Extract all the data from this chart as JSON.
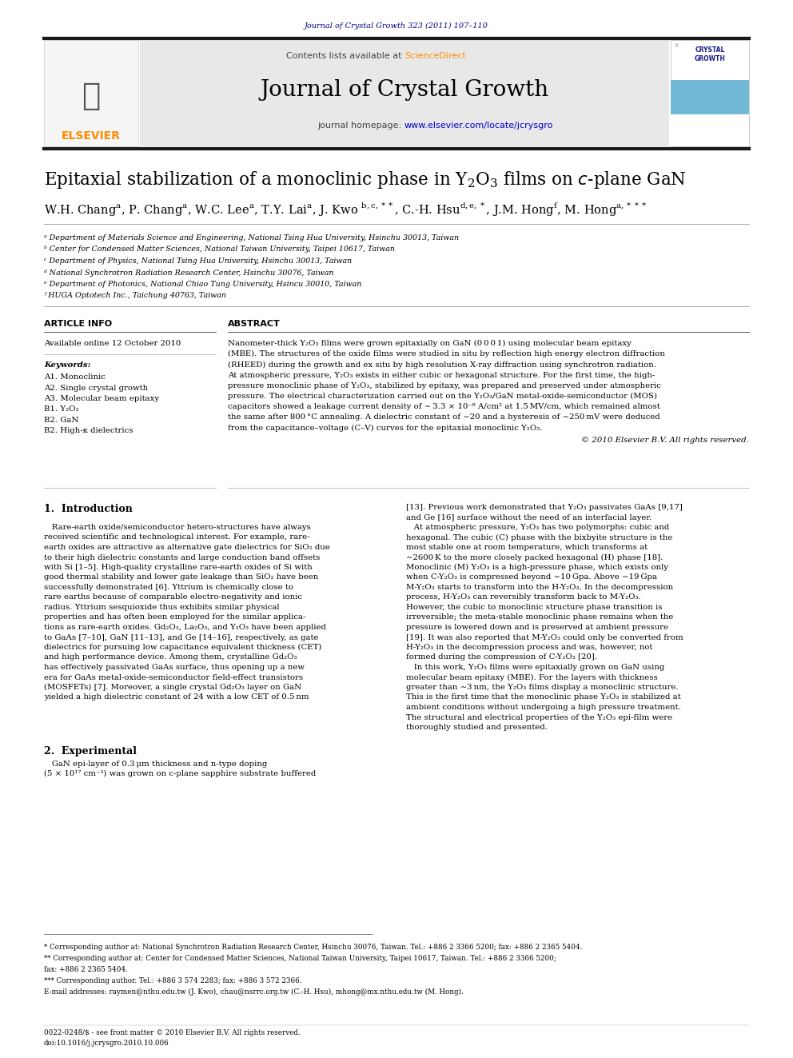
{
  "page_width": 9.92,
  "page_height": 13.23,
  "bg_color": "#ffffff",
  "journal_ref": "Journal of Crystal Growth 323 (2011) 107–110",
  "journal_ref_color": "#00008B",
  "header_bg": "#e8e8e8",
  "sciencedirect_color": "#FF8C00",
  "journal_title": "Journal of Crystal Growth",
  "journal_url_color": "#0000CD",
  "article_title_part1": "Epitaxial stabilization of a monoclinic phase in Y",
  "article_title_sub": "2",
  "article_title_part2": "O",
  "article_title_sub2": "3",
  "article_title_part3": " films on ",
  "article_title_italic": "c",
  "article_title_part4": "-plane GaN",
  "affiliations": [
    "ᵃ Department of Materials Science and Engineering, National Tsing Hua University, Hsinchu 30013, Taiwan",
    "ᵇ Center for Condensed Matter Sciences, National Taiwan University, Taipei 10617, Taiwan",
    "ᶜ Department of Physics, National Tsing Hua University, Hsinchu 30013, Taiwan",
    "ᵈ National Synchrotron Radiation Research Center, Hsinchu 30076, Taiwan",
    "ᵉ Department of Photonics, National Chiao Tung University, Hsincu 30010, Taiwan",
    "ᶠ HUGA Optotech Inc., Taichung 40763, Taiwan"
  ],
  "article_info_header": "ARTICLE INFO",
  "abstract_header": "ABSTRACT",
  "available_online": "Available online 12 October 2010",
  "keywords_header": "Keywords:",
  "keywords": [
    "A1. Monoclinic",
    "A2. Single crystal growth",
    "A3. Molecular beam epitaxy",
    "B1. Y₂O₃",
    "B2. GaN",
    "B2. High-κ dielectrics"
  ],
  "abstract_lines": [
    "Nanometer-thick Y₂O₃ films were grown epitaxially on GaN (0 0 0 1) using molecular beam epitaxy",
    "(MBE). The structures of the oxide films were studied in situ by reflection high energy electron diffraction",
    "(RHEED) during the growth and ex situ by high resolution X-ray diffraction using synchrotron radiation.",
    "At atmospheric pressure, Y₂O₃ exists in either cubic or hexagonal structure. For the first time, the high-",
    "pressure monoclinic phase of Y₂O₃, stabilized by epitaxy, was prepared and preserved under atmospheric",
    "pressure. The electrical characterization carried out on the Y₂O₃/GaN metal-oxide-semiconductor (MOS)",
    "capacitors showed a leakage current density of ∼ 3.3 × 10⁻⁸ A/cm² at 1.5 MV/cm, which remained almost",
    "the same after 800 °C annealing. A dielectric constant of ∼20 and a hysteresis of ∼250 mV were deduced",
    "from the capacitance–voltage (C–V) curves for the epitaxial monoclinic Y₂O₃."
  ],
  "copyright": "© 2010 Elsevier B.V. All rights reserved.",
  "section1_title": "1.  Introduction",
  "intro_col1_lines": [
    "   Rare-earth oxide/semiconductor hetero-structures have always",
    "received scientific and technological interest. For example, rare-",
    "earth oxides are attractive as alternative gate dielectrics for SiO₂ due",
    "to their high dielectric constants and large conduction band offsets",
    "with Si [1–5]. High-quality crystalline rare-earth oxides of Si with",
    "good thermal stability and lower gate leakage than SiO₂ have been",
    "successfully demonstrated [6]. Yttrium is chemically close to",
    "rare earths because of comparable electro-negativity and ionic",
    "radius. Yttrium sesquioxide thus exhibits similar physical",
    "properties and has often been employed for the similar applica-",
    "tions as rare-earth oxides. Gd₂O₃, La₂O₃, and Y₂O₃ have been applied",
    "to GaAs [7–10], GaN [11–13], and Ge [14–16], respectively, as gate",
    "dielectrics for pursuing low capacitance equivalent thickness (CET)",
    "and high performance device. Among them, crystalline Gd₂O₃",
    "has effectively passivated GaAs surface, thus opening up a new",
    "era for GaAs metal-oxide-semiconductor field-effect transistors",
    "(MOSFETs) [7]. Moreover, a single crystal Gd₂O₃ layer on GaN",
    "yielded a high dielectric constant of 24 with a low CET of 0.5 nm"
  ],
  "intro_col2_lines": [
    "[13]. Previous work demonstrated that Y₂O₃ passivates GaAs [9,17]",
    "and Ge [16] surface without the need of an interfacial layer.",
    "   At atmospheric pressure, Y₂O₃ has two polymorphs: cubic and",
    "hexagonal. The cubic (C) phase with the bixbyite structure is the",
    "most stable one at room temperature, which transforms at",
    "∼2600 K to the more closely packed hexagonal (H) phase [18].",
    "Monoclinic (M) Y₂O₃ is a high-pressure phase, which exists only",
    "when C-Y₂O₃ is compressed beyond ∼10 Gpa. Above ∼19 Gpa",
    "M-Y₂O₃ starts to transform into the H-Y₂O₃. In the decompression",
    "process, H-Y₂O₃ can reversibly transform back to M-Y₂O₃.",
    "However, the cubic to monoclinic structure phase transition is",
    "irreversible; the meta-stable monoclinic phase remains when the",
    "pressure is lowered down and is preserved at ambient pressure",
    "[19]. It was also reported that M-Y₂O₃ could only be converted from",
    "H-Y₂O₃ in the decompression process and was, however, not",
    "formed during the compression of C-Y₂O₃ [20].",
    "   In this work, Y₂O₃ films were epitaxially grown on GaN using",
    "molecular beam epitaxy (MBE). For the layers with thickness",
    "greater than ∼3 nm, the Y₂O₃ films display a monoclinic structure.",
    "This is the first time that the monoclinic phase Y₂O₃ is stabilized at",
    "ambient conditions without undergoing a high pressure treatment.",
    "The structural and electrical properties of the Y₂O₃ epi-film were",
    "thoroughly studied and presented."
  ],
  "section2_title": "2.  Experimental",
  "experimental_lines": [
    "   GaN epi-layer of 0.3 μm thickness and n-type doping",
    "(5 × 10¹⁷ cm⁻³) was grown on c-plane sapphire substrate buffered"
  ],
  "footnote1": "* Corresponding author at: National Synchrotron Radiation Research Center, Hsinchu 30076, Taiwan. Tel.: +886 2 3366 5200; fax: +886 2 2365 5404.",
  "footnote2": "** Corresponding author at: Center for Condensed Matter Sciences, National Taiwan University, Taipei 10617, Taiwan. Tel.: +886 2 3366 5200;",
  "footnote2b": "fax: +886 2 2365 5404.",
  "footnote3": "*** Corresponding author. Tel.: +886 3 574 2283; fax: +886 3 572 2366.",
  "footnote_email": "E-mail addresses: raymen@nthu.edu.tw (J. Kwo), chau@nsrrc.org.tw (C.-H. Hsu), mhong@mx.nthu.edu.tw (M. Hong).",
  "issn_text": "0022-0248/$ - see front matter © 2010 Elsevier B.V. All rights reserved.",
  "doi_text": "doi:10.1016/j.jcrysgro.2010.10.006",
  "elsevier_color": "#FF8C00",
  "thick_bar_color": "#1a1a1a"
}
